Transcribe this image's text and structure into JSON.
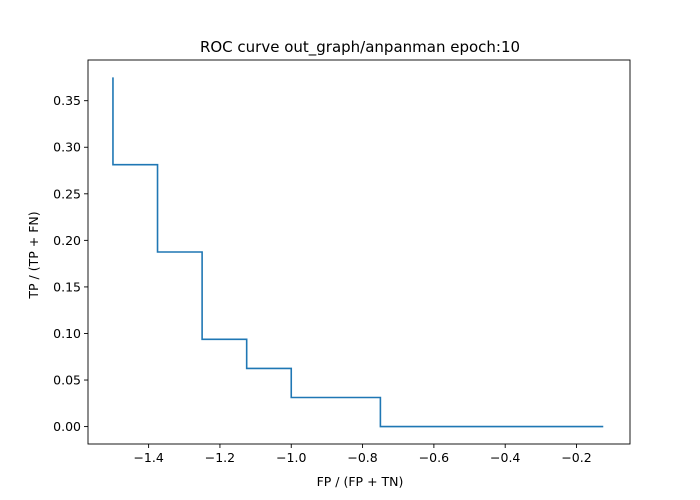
{
  "chart_data": {
    "type": "line",
    "title": "ROC curve out_graph/anpanman epoch:10",
    "xlabel": "FP / (FP + TN)",
    "ylabel": "TP / (TP + FN)",
    "xlim": [
      -1.57,
      -0.05
    ],
    "ylim": [
      -0.0187,
      0.3937
    ],
    "xticks": [
      -1.4,
      -1.2,
      -1.0,
      -0.8,
      -0.6,
      -0.4,
      -0.2
    ],
    "xtick_labels": [
      "−1.4",
      "−1.2",
      "−1.0",
      "−0.8",
      "−0.6",
      "−0.4",
      "−0.2"
    ],
    "yticks": [
      0.0,
      0.05,
      0.1,
      0.15,
      0.2,
      0.25,
      0.3,
      0.35
    ],
    "ytick_labels": [
      "0.00",
      "0.05",
      "0.10",
      "0.15",
      "0.20",
      "0.25",
      "0.30",
      "0.35"
    ],
    "grid": false,
    "legend": false,
    "line_color": "#1f77b4",
    "series": [
      {
        "x": [
          -1.5,
          -1.5,
          -1.375,
          -1.375,
          -1.25,
          -1.25,
          -1.125,
          -1.125,
          -1.0,
          -1.0,
          -0.75,
          -0.75,
          -0.125
        ],
        "y": [
          0.375,
          0.28125,
          0.28125,
          0.1875,
          0.1875,
          0.09375,
          0.09375,
          0.0625,
          0.0625,
          0.03125,
          0.03125,
          0.0,
          0.0
        ]
      }
    ]
  }
}
